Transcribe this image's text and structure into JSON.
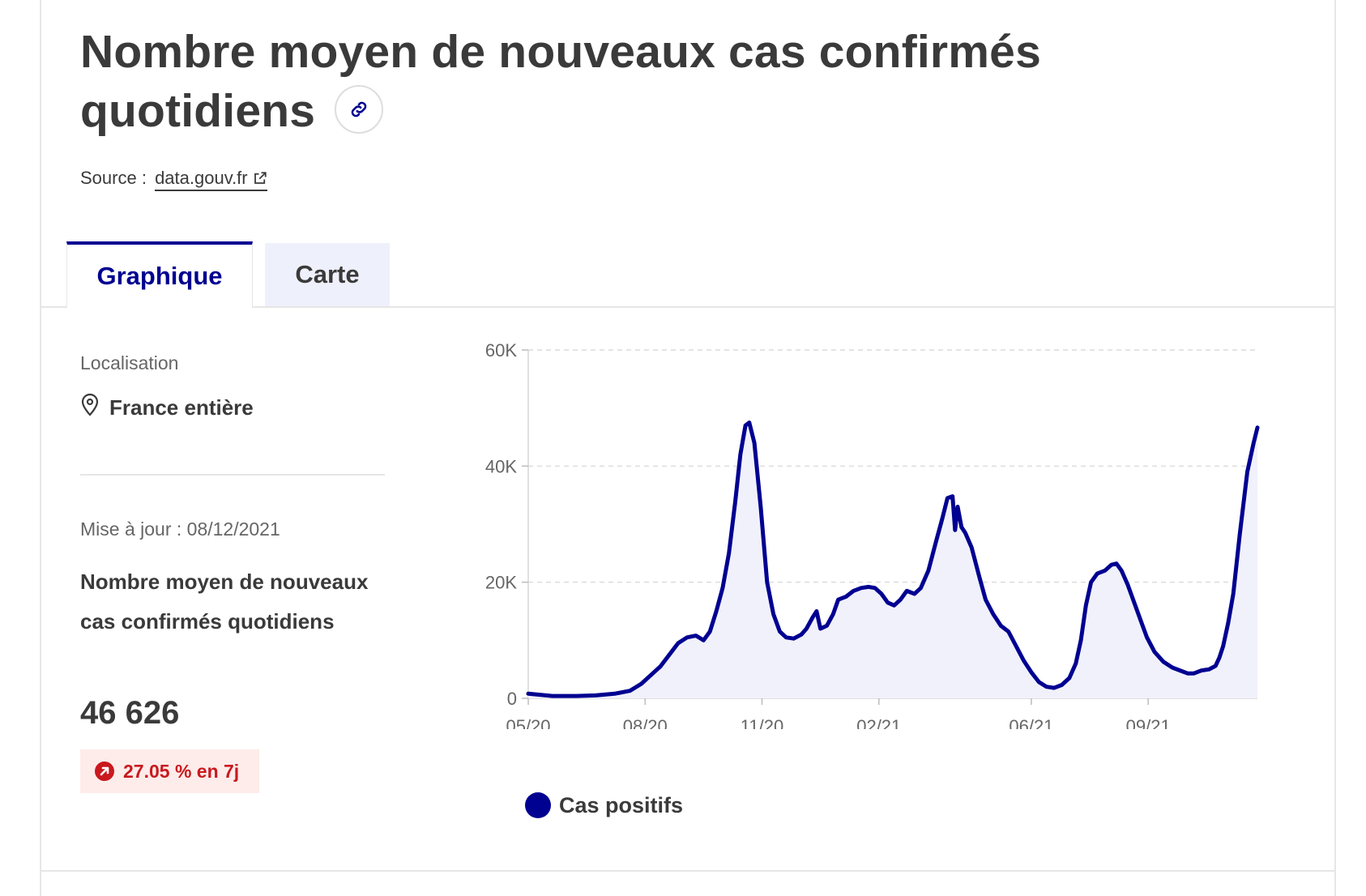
{
  "header": {
    "title": "Nombre moyen de nouveaux cas confirmés quotidiens",
    "source_prefix": "Source :",
    "source_link": "data.gouv.fr"
  },
  "tabs": [
    {
      "label": "Graphique",
      "active": true
    },
    {
      "label": "Carte",
      "active": false
    }
  ],
  "sidebar": {
    "location_label": "Localisation",
    "location_value": "France entière",
    "update_text": "Mise à jour : 08/12/2021",
    "metric_label": "Nombre moyen de nouveaux cas confirmés quotidiens",
    "metric_value": "46 626",
    "trend_text": "27.05 % en 7j"
  },
  "colors": {
    "accent": "#000091",
    "trend_negative": "#c9191e",
    "trend_bg": "#fdecea",
    "area_fill": "#f1f1fb"
  },
  "icons": {
    "title": "link-icon",
    "source": "external-link-icon",
    "location": "map-pin-icon",
    "trend": "arrow-up-right-circle-icon"
  },
  "chart_data": {
    "type": "area",
    "title": "",
    "xlabel": "",
    "ylabel": "",
    "ylim": [
      0,
      60000
    ],
    "y_ticks": [
      0,
      20000,
      40000,
      60000
    ],
    "y_tick_labels": [
      "0",
      "20K",
      "40K",
      "60K"
    ],
    "x_ticks": [
      "05/20",
      "08/20",
      "11/20",
      "02/21",
      "06/21",
      "09/21"
    ],
    "x_range": [
      "2020-05-13",
      "2021-12-08"
    ],
    "grid": true,
    "legend_position": "bottom",
    "series": [
      {
        "name": "Cas positifs",
        "color": "#000091",
        "points": [
          [
            "2020-05-13",
            800
          ],
          [
            "2020-06-01",
            400
          ],
          [
            "2020-06-20",
            400
          ],
          [
            "2020-07-05",
            500
          ],
          [
            "2020-07-20",
            800
          ],
          [
            "2020-08-01",
            1300
          ],
          [
            "2020-08-10",
            2500
          ],
          [
            "2020-08-20",
            4500
          ],
          [
            "2020-08-25",
            5500
          ],
          [
            "2020-09-01",
            7500
          ],
          [
            "2020-09-08",
            9500
          ],
          [
            "2020-09-15",
            10500
          ],
          [
            "2020-09-22",
            10800
          ],
          [
            "2020-09-28",
            10000
          ],
          [
            "2020-10-03",
            11500
          ],
          [
            "2020-10-08",
            15000
          ],
          [
            "2020-10-13",
            19000
          ],
          [
            "2020-10-18",
            25000
          ],
          [
            "2020-10-23",
            34000
          ],
          [
            "2020-10-27",
            42000
          ],
          [
            "2020-10-31",
            47000
          ],
          [
            "2020-11-03",
            47500
          ],
          [
            "2020-11-07",
            44000
          ],
          [
            "2020-11-12",
            33000
          ],
          [
            "2020-11-17",
            20000
          ],
          [
            "2020-11-22",
            14500
          ],
          [
            "2020-11-27",
            11500
          ],
          [
            "2020-12-02",
            10500
          ],
          [
            "2020-12-08",
            10300
          ],
          [
            "2020-12-14",
            11000
          ],
          [
            "2020-12-18",
            12000
          ],
          [
            "2020-12-23",
            14000
          ],
          [
            "2020-12-26",
            15000
          ],
          [
            "2020-12-29",
            12000
          ],
          [
            "2021-01-03",
            12500
          ],
          [
            "2021-01-08",
            14500
          ],
          [
            "2021-01-12",
            17000
          ],
          [
            "2021-01-18",
            17500
          ],
          [
            "2021-01-24",
            18500
          ],
          [
            "2021-01-30",
            19000
          ],
          [
            "2021-02-05",
            19200
          ],
          [
            "2021-02-10",
            19000
          ],
          [
            "2021-02-15",
            18000
          ],
          [
            "2021-02-20",
            16500
          ],
          [
            "2021-02-25",
            16000
          ],
          [
            "2021-03-02",
            17000
          ],
          [
            "2021-03-07",
            18500
          ],
          [
            "2021-03-13",
            18000
          ],
          [
            "2021-03-18",
            19000
          ],
          [
            "2021-03-24",
            22000
          ],
          [
            "2021-03-30",
            27000
          ],
          [
            "2021-04-04",
            31000
          ],
          [
            "2021-04-08",
            34500
          ],
          [
            "2021-04-12",
            34800
          ],
          [
            "2021-04-14",
            29000
          ],
          [
            "2021-04-16",
            33000
          ],
          [
            "2021-04-19",
            29500
          ],
          [
            "2021-04-22",
            28500
          ],
          [
            "2021-04-27",
            26000
          ],
          [
            "2021-05-03",
            21000
          ],
          [
            "2021-05-08",
            17000
          ],
          [
            "2021-05-14",
            14500
          ],
          [
            "2021-05-20",
            12500
          ],
          [
            "2021-05-26",
            11500
          ],
          [
            "2021-06-01",
            9000
          ],
          [
            "2021-06-07",
            6500
          ],
          [
            "2021-06-13",
            4500
          ],
          [
            "2021-06-19",
            2800
          ],
          [
            "2021-06-25",
            2000
          ],
          [
            "2021-07-01",
            1800
          ],
          [
            "2021-07-07",
            2300
          ],
          [
            "2021-07-13",
            3500
          ],
          [
            "2021-07-18",
            6000
          ],
          [
            "2021-07-22",
            10000
          ],
          [
            "2021-07-26",
            16000
          ],
          [
            "2021-07-30",
            20000
          ],
          [
            "2021-08-04",
            21500
          ],
          [
            "2021-08-10",
            22000
          ],
          [
            "2021-08-15",
            23000
          ],
          [
            "2021-08-19",
            23200
          ],
          [
            "2021-08-23",
            22000
          ],
          [
            "2021-08-28",
            19500
          ],
          [
            "2021-09-02",
            16500
          ],
          [
            "2021-09-07",
            13500
          ],
          [
            "2021-09-12",
            10500
          ],
          [
            "2021-09-18",
            8000
          ],
          [
            "2021-09-25",
            6300
          ],
          [
            "2021-10-02",
            5300
          ],
          [
            "2021-10-08",
            4800
          ],
          [
            "2021-10-14",
            4300
          ],
          [
            "2021-10-19",
            4300
          ],
          [
            "2021-10-25",
            4800
          ],
          [
            "2021-10-31",
            5000
          ],
          [
            "2021-11-05",
            5600
          ],
          [
            "2021-11-08",
            7000
          ],
          [
            "2021-11-11",
            9000
          ],
          [
            "2021-11-15",
            13000
          ],
          [
            "2021-11-19",
            18000
          ],
          [
            "2021-11-24",
            28000
          ],
          [
            "2021-11-30",
            39000
          ],
          [
            "2021-12-05",
            44000
          ],
          [
            "2021-12-08",
            46626
          ]
        ]
      }
    ]
  }
}
